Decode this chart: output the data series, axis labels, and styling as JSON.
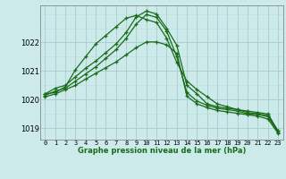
{
  "title": "Graphe pression niveau de la mer (hPa)",
  "bg_color": "#cceaea",
  "grid_color": "#aacccc",
  "grid_color_minor": "#bbdddd",
  "line_color": "#1a6b1a",
  "xlim": [
    -0.5,
    23.5
  ],
  "ylim": [
    1018.6,
    1023.3
  ],
  "xticks": [
    0,
    1,
    2,
    3,
    4,
    5,
    6,
    7,
    8,
    9,
    10,
    11,
    12,
    13,
    14,
    15,
    16,
    17,
    18,
    19,
    20,
    21,
    22,
    23
  ],
  "yticks": [
    1019,
    1020,
    1021,
    1022
  ],
  "series": [
    [
      1020.2,
      1020.25,
      1020.45,
      1021.05,
      1021.5,
      1021.95,
      1022.25,
      1022.55,
      1022.85,
      1022.95,
      1022.8,
      1022.7,
      1022.15,
      1021.3,
      1020.65,
      1020.35,
      1020.1,
      1019.85,
      1019.75,
      1019.65,
      1019.6,
      1019.55,
      1019.5,
      1018.9
    ],
    [
      1020.2,
      1020.4,
      1020.5,
      1020.8,
      1021.1,
      1021.35,
      1021.65,
      1021.95,
      1022.35,
      1022.9,
      1023.1,
      1023.0,
      1022.5,
      1021.9,
      1020.5,
      1020.2,
      1019.85,
      1019.75,
      1019.7,
      1019.65,
      1019.55,
      1019.5,
      1019.45,
      1018.9
    ],
    [
      1020.15,
      1020.3,
      1020.4,
      1020.65,
      1020.9,
      1021.15,
      1021.45,
      1021.75,
      1022.15,
      1022.65,
      1022.98,
      1022.88,
      1022.4,
      1021.5,
      1020.25,
      1019.95,
      1019.8,
      1019.7,
      1019.65,
      1019.6,
      1019.5,
      1019.48,
      1019.4,
      1018.85
    ],
    [
      1020.1,
      1020.2,
      1020.35,
      1020.5,
      1020.72,
      1020.92,
      1021.12,
      1021.32,
      1021.57,
      1021.82,
      1022.02,
      1022.02,
      1021.92,
      1021.62,
      1020.12,
      1019.85,
      1019.72,
      1019.62,
      1019.57,
      1019.52,
      1019.47,
      1019.42,
      1019.32,
      1018.82
    ]
  ]
}
